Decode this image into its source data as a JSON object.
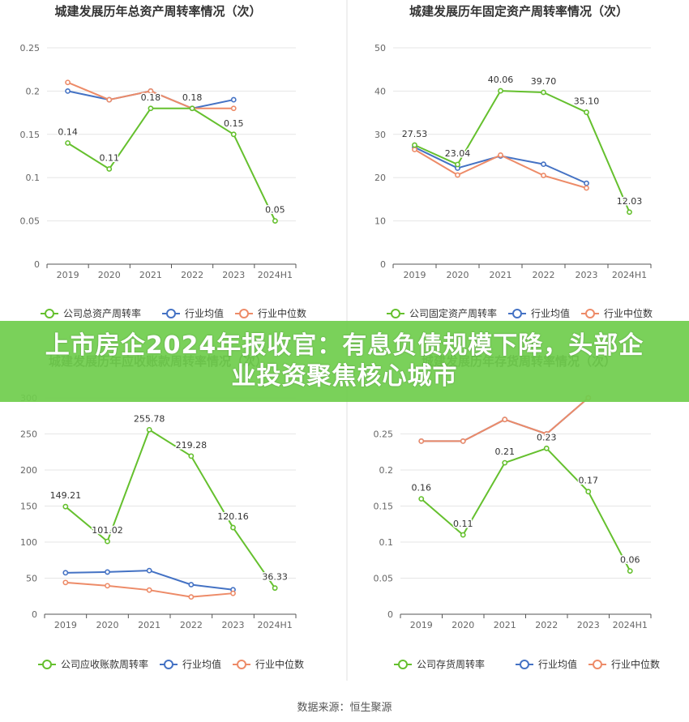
{
  "banner": {
    "title": "上市房企2024年报收官：有息负债规模下降，头部企业投资聚焦核心城市"
  },
  "source": {
    "text": "数据来源：恒生聚源"
  },
  "colors": {
    "company": "#65c02e",
    "mean": "#4472c4",
    "median": "#ed8b68"
  },
  "chart_data": [
    {
      "type": "line",
      "title": "城建发展历年总资产周转率情况（次）",
      "categories": [
        "2019",
        "2020",
        "2021",
        "2022",
        "2023",
        "2024H1"
      ],
      "ylim": [
        0,
        0.25
      ],
      "yticks": [
        0,
        0.05,
        0.1,
        0.15,
        0.2,
        0.25
      ],
      "series": [
        {
          "name": "公司总资产周转率",
          "values": [
            0.14,
            0.11,
            0.18,
            0.18,
            0.15,
            0.05
          ],
          "labels": [
            "0.14",
            "0.11",
            "0.18",
            "0.18",
            "0.15",
            "0.05"
          ]
        },
        {
          "name": "行业均值",
          "values": [
            0.2,
            0.19,
            0.2,
            0.18,
            0.19,
            null
          ]
        },
        {
          "name": "行业中位数",
          "values": [
            0.21,
            0.19,
            0.2,
            0.18,
            0.18,
            null
          ]
        }
      ],
      "legend": "bottom"
    },
    {
      "type": "line",
      "title": "城建发展历年固定资产周转率情况（次）",
      "categories": [
        "2019",
        "2020",
        "2021",
        "2022",
        "2023",
        "2024H1"
      ],
      "ylim": [
        0,
        50
      ],
      "yticks": [
        0,
        10,
        20,
        30,
        40,
        50
      ],
      "series": [
        {
          "name": "公司固定资产周转率",
          "values": [
            27.53,
            23.04,
            40.06,
            39.7,
            35.1,
            12.03
          ],
          "labels": [
            "27.53",
            "23.04",
            "40.06",
            "39.70",
            "35.10",
            "12.03"
          ]
        },
        {
          "name": "行业均值",
          "values": [
            27,
            22.2,
            25,
            23.1,
            18.7,
            null
          ]
        },
        {
          "name": "行业中位数",
          "values": [
            26.5,
            20.6,
            25.2,
            20.5,
            17.6,
            null
          ]
        }
      ],
      "legend": "bottom"
    },
    {
      "type": "line",
      "title": "城建发展历年应收账款周转率情况（次）",
      "categories": [
        "2019",
        "2020",
        "2021",
        "2022",
        "2023",
        "2024H1"
      ],
      "ylim": [
        0,
        300
      ],
      "yticks": [
        0,
        50,
        100,
        150,
        200,
        250,
        300
      ],
      "series": [
        {
          "name": "公司应收账款周转率",
          "values": [
            149.21,
            101.02,
            255.78,
            219.28,
            120.16,
            36.33
          ],
          "labels": [
            "149.21",
            "101.02",
            "255.78",
            "219.28",
            "120.16",
            "36.33"
          ]
        },
        {
          "name": "行业均值",
          "values": [
            57.5,
            58.5,
            60.5,
            41,
            34,
            null
          ]
        },
        {
          "name": "行业中位数",
          "values": [
            44,
            39.5,
            33.5,
            24,
            29,
            null
          ]
        }
      ],
      "legend": "bottom"
    },
    {
      "type": "line",
      "title": "城建发展历年存货周转率情况（次）",
      "categories": [
        "2019",
        "2020",
        "2021",
        "2022",
        "2023",
        "2024H1"
      ],
      "ylim": [
        0,
        0.3
      ],
      "yticks": [
        0,
        0.05,
        0.1,
        0.15,
        0.2,
        0.25
      ],
      "series": [
        {
          "name": "公司存货周转率",
          "values": [
            0.16,
            0.11,
            0.21,
            0.23,
            0.17,
            0.06
          ],
          "labels": [
            "0.16",
            "0.11",
            "0.21",
            "0.23",
            "0.17",
            "0.06"
          ]
        },
        {
          "name": "行业均值",
          "values": [
            0.24,
            0.24,
            0.27,
            0.25,
            0.3,
            null
          ]
        },
        {
          "name": "行业中位数",
          "values": [
            0.24,
            0.24,
            0.27,
            0.25,
            0.3,
            null
          ]
        }
      ],
      "legend": "bottom"
    }
  ]
}
